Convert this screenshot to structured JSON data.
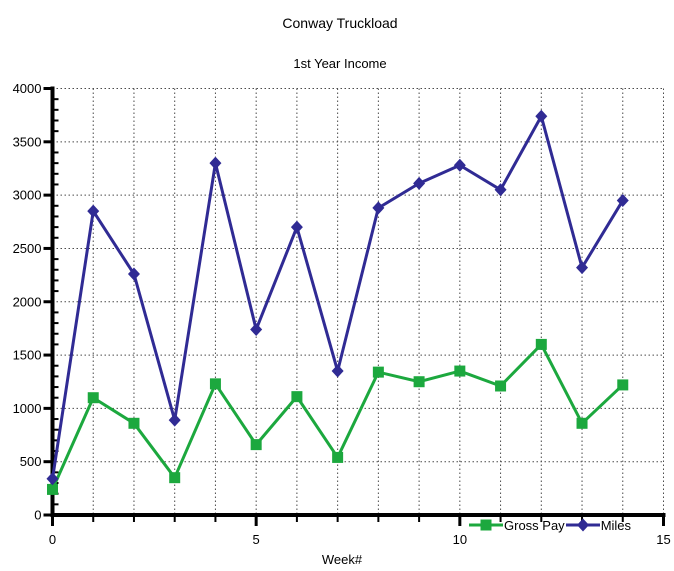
{
  "chart_data": {
    "type": "line",
    "title": "Conway Truckload",
    "subtitle": "1st Year Income",
    "xlabel": "Week#",
    "x": [
      0,
      1,
      2,
      3,
      4,
      5,
      6,
      7,
      8,
      9,
      10,
      11,
      12,
      13,
      14
    ],
    "series": [
      {
        "name": "Gross Pay",
        "color": "#1ca83e",
        "marker": "square",
        "values": [
          240,
          1100,
          860,
          350,
          1230,
          660,
          1110,
          540,
          1340,
          1250,
          1350,
          1210,
          1600,
          860,
          1220
        ]
      },
      {
        "name": "Miles",
        "color": "#302b94",
        "marker": "diamond",
        "values": [
          340,
          2850,
          2260,
          890,
          3300,
          1740,
          2700,
          1350,
          2880,
          3110,
          3280,
          3050,
          3740,
          2320,
          2950
        ]
      }
    ],
    "xlim": [
      0,
      15
    ],
    "ylim": [
      0,
      4000
    ],
    "x_major_ticks": [
      0,
      5,
      10,
      15
    ],
    "x_minor_step": 1,
    "y_major_step": 500,
    "y_minor_step": 100,
    "grid": "dashed",
    "legend_position": "bottom-right-inline"
  },
  "style_colors": {
    "axis": "#000000",
    "grid": "#4a4a4a",
    "text": "#000000",
    "background": "#ffffff"
  }
}
